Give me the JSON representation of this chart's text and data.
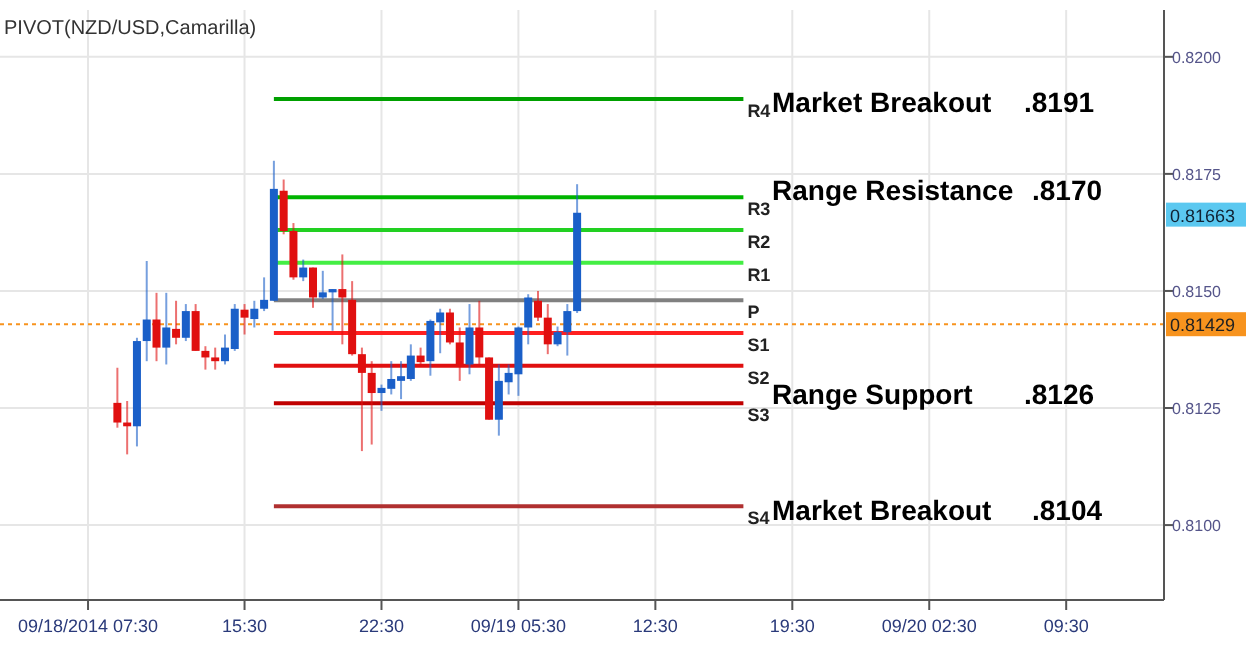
{
  "chart_data": {
    "type": "candlestick",
    "title": "PIVOT(NZD/USD,Camarilla)",
    "x": [
      "2014-09-18T09:00",
      "2014-09-18T09:30",
      "2014-09-18T10:00",
      "2014-09-18T10:30",
      "2014-09-18T11:00",
      "2014-09-18T11:30",
      "2014-09-18T12:00",
      "2014-09-18T12:30",
      "2014-09-18T13:00",
      "2014-09-18T13:30",
      "2014-09-18T14:00",
      "2014-09-18T14:30",
      "2014-09-18T15:00",
      "2014-09-18T15:30",
      "2014-09-18T16:00",
      "2014-09-18T16:30",
      "2014-09-18T17:00",
      "2014-09-18T17:30",
      "2014-09-18T18:00",
      "2014-09-18T18:30",
      "2014-09-18T19:00",
      "2014-09-18T19:30",
      "2014-09-18T20:00",
      "2014-09-18T20:30",
      "2014-09-18T21:00",
      "2014-09-18T21:30",
      "2014-09-18T22:00",
      "2014-09-18T22:30",
      "2014-09-18T23:00",
      "2014-09-18T23:30",
      "2014-09-19T00:00",
      "2014-09-19T00:30",
      "2014-09-19T01:00",
      "2014-09-19T01:30",
      "2014-09-19T02:00",
      "2014-09-19T02:30",
      "2014-09-19T03:00",
      "2014-09-19T03:30",
      "2014-09-19T04:00",
      "2014-09-19T04:30",
      "2014-09-19T05:00",
      "2014-09-19T05:30",
      "2014-09-19T06:00",
      "2014-09-19T06:30",
      "2014-09-19T07:00",
      "2014-09-19T07:30",
      "2014-09-19T08:00",
      "2014-09-19T08:30"
    ],
    "ohlc": [
      [
        0.81261,
        0.81336,
        0.81208,
        0.81219
      ],
      [
        0.81219,
        0.81265,
        0.81151,
        0.81211
      ],
      [
        0.81211,
        0.814,
        0.81168,
        0.81393
      ],
      [
        0.81393,
        0.81564,
        0.8135,
        0.81439
      ],
      [
        0.81439,
        0.81496,
        0.8135,
        0.81379
      ],
      [
        0.81379,
        0.81496,
        0.81343,
        0.81422
      ],
      [
        0.81419,
        0.81479,
        0.81386,
        0.814
      ],
      [
        0.814,
        0.81472,
        0.81393,
        0.81457
      ],
      [
        0.81457,
        0.81472,
        0.81372,
        0.81372
      ],
      [
        0.81372,
        0.81382,
        0.81332,
        0.81358
      ],
      [
        0.81358,
        0.81379,
        0.81332,
        0.8135
      ],
      [
        0.8135,
        0.81407,
        0.81343,
        0.81379
      ],
      [
        0.81376,
        0.81472,
        0.81372,
        0.81462
      ],
      [
        0.8146,
        0.81472,
        0.81407,
        0.81443
      ],
      [
        0.8144,
        0.81479,
        0.81422,
        0.81462
      ],
      [
        0.81462,
        0.81529,
        0.81457,
        0.81481
      ],
      [
        0.81479,
        0.81778,
        0.81479,
        0.81718
      ],
      [
        0.81714,
        0.81738,
        0.81621,
        0.81628
      ],
      [
        0.81628,
        0.81645,
        0.81524,
        0.81529
      ],
      [
        0.81529,
        0.81567,
        0.81521,
        0.8155
      ],
      [
        0.8155,
        0.8155,
        0.81464,
        0.81486
      ],
      [
        0.81486,
        0.81543,
        0.81483,
        0.81497
      ],
      [
        0.81497,
        0.81504,
        0.81415,
        0.81504
      ],
      [
        0.81504,
        0.81578,
        0.81386,
        0.81486
      ],
      [
        0.81481,
        0.81521,
        0.81362,
        0.81365
      ],
      [
        0.81365,
        0.81379,
        0.81158,
        0.81325
      ],
      [
        0.81325,
        0.8135,
        0.81172,
        0.81282
      ],
      [
        0.81282,
        0.813,
        0.81244,
        0.81293
      ],
      [
        0.81291,
        0.8135,
        0.81279,
        0.81312
      ],
      [
        0.81308,
        0.8135,
        0.81269,
        0.81318
      ],
      [
        0.81312,
        0.81386,
        0.81308,
        0.81362
      ],
      [
        0.81362,
        0.81379,
        0.81343,
        0.81348
      ],
      [
        0.8135,
        0.81439,
        0.81319,
        0.81436
      ],
      [
        0.81433,
        0.81462,
        0.81367,
        0.81454
      ],
      [
        0.81454,
        0.81462,
        0.81386,
        0.8139
      ],
      [
        0.8139,
        0.81422,
        0.81308,
        0.81343
      ],
      [
        0.81343,
        0.81472,
        0.81322,
        0.81422
      ],
      [
        0.81422,
        0.81479,
        0.81343,
        0.81358
      ],
      [
        0.81358,
        0.81358,
        0.81225,
        0.81225
      ],
      [
        0.81225,
        0.81343,
        0.81191,
        0.81308
      ],
      [
        0.81305,
        0.81343,
        0.81279,
        0.81325
      ],
      [
        0.81322,
        0.81424,
        0.81276,
        0.81422
      ],
      [
        0.81422,
        0.81493,
        0.81386,
        0.81486
      ],
      [
        0.81479,
        0.815,
        0.81436,
        0.81443
      ],
      [
        0.81443,
        0.81472,
        0.81365,
        0.81386
      ],
      [
        0.81386,
        0.81424,
        0.81382,
        0.81412
      ],
      [
        0.81412,
        0.81472,
        0.81362,
        0.81457
      ],
      [
        0.81457,
        0.81728,
        0.81453,
        0.81667
      ]
    ],
    "series": [
      {
        "type": "line",
        "name": "R4",
        "color": "#00a000",
        "x": [
          "2014-09-18T17:00",
          "2014-09-19T17:00"
        ],
        "values": [
          0.8191,
          0.8191
        ]
      },
      {
        "type": "line",
        "name": "R3",
        "color": "#00b400",
        "x": [
          "2014-09-18T17:00",
          "2014-09-19T17:00"
        ],
        "values": [
          0.817,
          0.817
        ]
      },
      {
        "type": "line",
        "name": "R2",
        "color": "#22d022",
        "x": [
          "2014-09-18T17:00",
          "2014-09-19T17:00"
        ],
        "values": [
          0.8163,
          0.8163
        ]
      },
      {
        "type": "line",
        "name": "R1",
        "color": "#44ee44",
        "x": [
          "2014-09-18T17:00",
          "2014-09-19T17:00"
        ],
        "values": [
          0.8156,
          0.8156
        ]
      },
      {
        "type": "line",
        "name": "P",
        "color": "#808080",
        "x": [
          "2014-09-18T17:00",
          "2014-09-19T17:00"
        ],
        "values": [
          0.8148,
          0.8148
        ]
      },
      {
        "type": "line",
        "name": "S1",
        "color": "#ff2020",
        "x": [
          "2014-09-18T17:00",
          "2014-09-19T17:00"
        ],
        "values": [
          0.8141,
          0.8141
        ]
      },
      {
        "type": "line",
        "name": "S2",
        "color": "#e01010",
        "x": [
          "2014-09-18T17:00",
          "2014-09-19T17:00"
        ],
        "values": [
          0.8134,
          0.8134
        ]
      },
      {
        "type": "line",
        "name": "S3",
        "color": "#c00000",
        "x": [
          "2014-09-18T17:00",
          "2014-09-19T17:00"
        ],
        "values": [
          0.8126,
          0.8126
        ]
      },
      {
        "type": "line",
        "name": "S4",
        "color": "#b03030",
        "x": [
          "2014-09-18T17:00",
          "2014-09-19T17:00"
        ],
        "values": [
          0.8104,
          0.8104
        ]
      }
    ],
    "xlim": [
      "2014-09-18T03:00",
      "2014-09-20T14:30"
    ],
    "ylim": [
      0.8084,
      0.821
    ],
    "xticks": [
      {
        "value": "2014-09-18T07:30",
        "label": "09/18/2014 07:30"
      },
      {
        "value": "2014-09-18T15:30",
        "label": "15:30"
      },
      {
        "value": "2014-09-18T22:30",
        "label": "22:30"
      },
      {
        "value": "2014-09-19T05:30",
        "label": "09/19 05:30"
      },
      {
        "value": "2014-09-19T12:30",
        "label": "12:30"
      },
      {
        "value": "2014-09-19T19:30",
        "label": "19:30"
      },
      {
        "value": "2014-09-20T02:30",
        "label": "09/20 02:30"
      },
      {
        "value": "2014-09-20T09:30",
        "label": "09:30"
      }
    ],
    "yticks": [
      {
        "value": 0.81,
        "label": "0.8100"
      },
      {
        "value": 0.8125,
        "label": "0.8125"
      },
      {
        "value": 0.815,
        "label": "0.8150"
      },
      {
        "value": 0.8175,
        "label": "0.8175"
      },
      {
        "value": 0.82,
        "label": "0.8200"
      }
    ],
    "grid": true,
    "ref_lines": [
      {
        "axis": "y",
        "value": 0.81429,
        "label": "0.81429",
        "color": "#f7931e",
        "line_style": "dotted"
      }
    ],
    "annotations": [
      "Market Breakout",
      ".8191",
      "Range Resistance",
      ".8170",
      "Range Support",
      ".8126",
      "Market Breakout",
      ".8104",
      {
        "text": "0.81663",
        "y": 0.81663
      }
    ]
  }
}
